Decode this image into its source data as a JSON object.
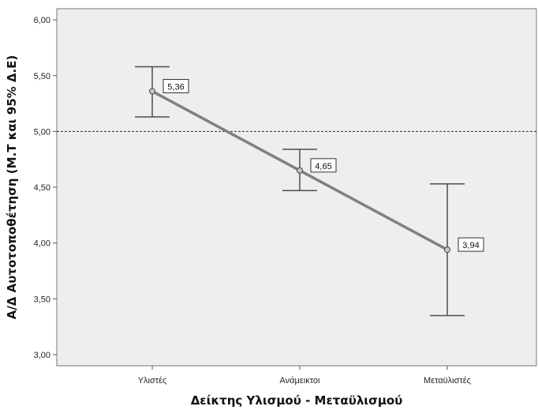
{
  "chart_data": {
    "type": "line",
    "categories": [
      "Υλιστές",
      "Ανάμεικτοι",
      "Μεταϋλιστές"
    ],
    "series": [
      {
        "values": [
          5.36,
          4.65,
          3.94
        ],
        "ci_lower": [
          5.13,
          4.47,
          3.35
        ],
        "ci_upper": [
          5.58,
          4.84,
          4.53
        ],
        "data_labels": [
          "5,36",
          "4,65",
          "3,94"
        ]
      }
    ],
    "reference_line": 5.0,
    "ylim": [
      2.9,
      6.1
    ],
    "yticks": [
      3.0,
      3.5,
      4.0,
      4.5,
      5.0,
      5.5,
      6.0
    ],
    "ytick_labels": [
      "3,00",
      "3,50",
      "4,00",
      "4,50",
      "5,00",
      "5,50",
      "6,00"
    ],
    "xlabel": "Δείκτης Υλισμού - Μεταϋλισμού",
    "ylabel": "Α/Δ Αυτοτοποθέτηση (Μ.Τ και 95% Δ.Ε)",
    "grid": false,
    "colors": {
      "plot_bg": "#eeeeee",
      "line": "#808080",
      "marker_fill": "#c8c8c8",
      "error_bar": "#4d4d4d",
      "reference": "#333333"
    }
  }
}
